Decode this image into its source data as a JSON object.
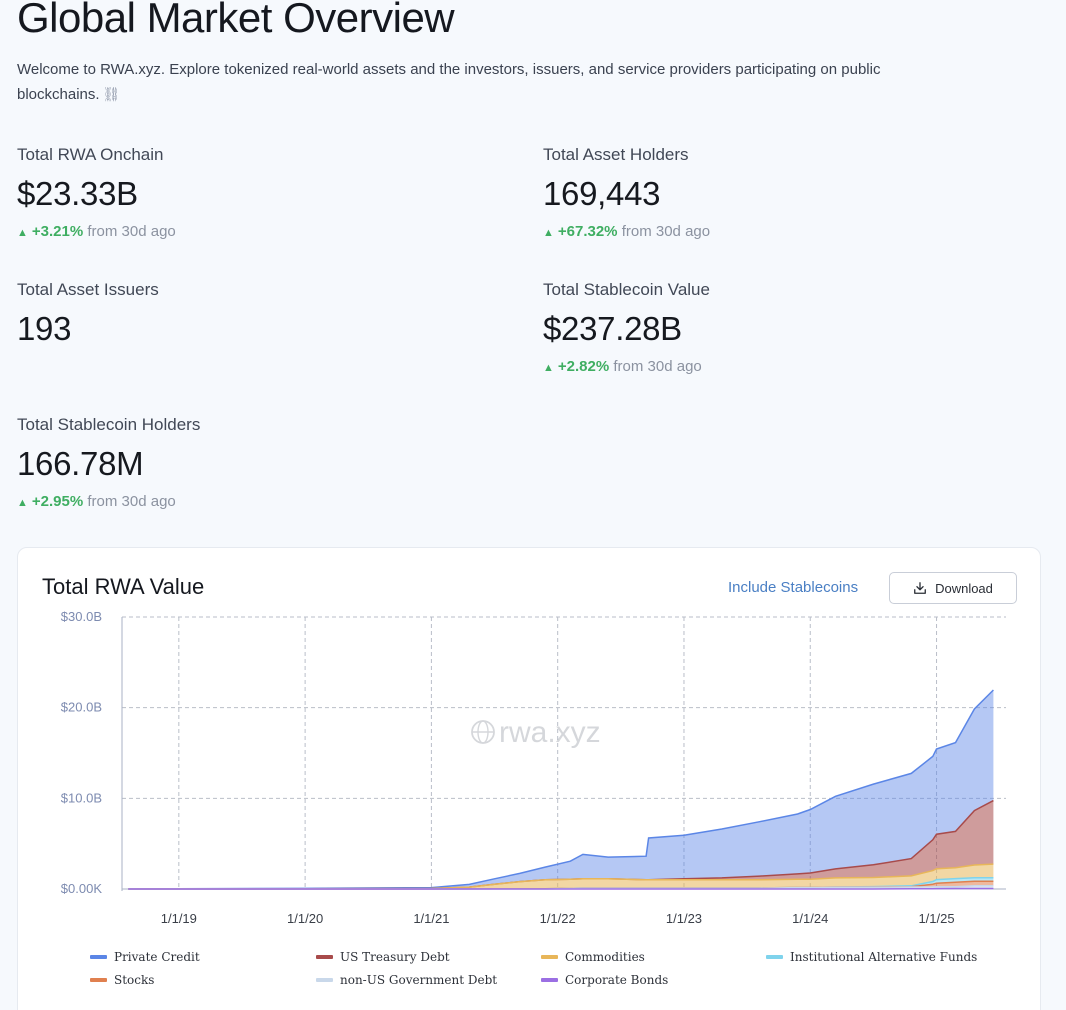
{
  "header": {
    "title": "Global Market Overview",
    "intro": "Welcome to RWA.xyz. Explore tokenized real-world assets and the investors, issuers, and service providers participating on public blockchains.",
    "intro_icon": "link-icon",
    "intro_icon_glyph": "⛓"
  },
  "stats": {
    "rwa_onchain": {
      "label": "Total RWA Onchain",
      "value": "$23.33B",
      "change": "+3.21%",
      "suffix": "from 30d ago"
    },
    "asset_holders": {
      "label": "Total Asset Holders",
      "value": "169,443",
      "change": "+67.32%",
      "suffix": "from 30d ago"
    },
    "asset_issuers": {
      "label": "Total Asset Issuers",
      "value": "193"
    },
    "stablecoin_value": {
      "label": "Total Stablecoin Value",
      "value": "$237.28B",
      "change": "+2.82%",
      "suffix": "from 30d ago"
    },
    "stablecoin_holders": {
      "label": "Total Stablecoin Holders",
      "value": "166.78M",
      "change": "+2.95%",
      "suffix": "from 30d ago"
    }
  },
  "trend_glyph": "▲",
  "card": {
    "title": "Total RWA Value",
    "include_stablecoins_label": "Include Stablecoins",
    "download_label": "Download",
    "download_icon": "download-icon"
  },
  "chart_data": {
    "type": "area",
    "stacked": true,
    "title": "Total RWA Value",
    "watermark": "rwa.xyz",
    "xlabel": "",
    "ylabel": "",
    "x_ticks": [
      "1/1/19",
      "1/1/20",
      "1/1/21",
      "1/1/22",
      "1/1/23",
      "1/1/24",
      "1/1/25"
    ],
    "y_ticks": [
      "$0.00K",
      "$10.0B",
      "$20.0B",
      "$30.0B"
    ],
    "ylim": [
      0,
      30
    ],
    "units": "$B",
    "grid": true,
    "x": [
      2018.6,
      2019.0,
      2020.0,
      2021.0,
      2021.3,
      2021.5,
      2021.7,
      2021.9,
      2022.1,
      2022.2,
      2022.4,
      2022.7,
      2022.72,
      2023.0,
      2023.3,
      2023.6,
      2023.9,
      2024.0,
      2024.2,
      2024.5,
      2024.8,
      2024.97,
      2025.0,
      2025.15,
      2025.3,
      2025.45
    ],
    "series": [
      {
        "name": "Private Credit",
        "color": "#5b86e6",
        "values": [
          0,
          0.02,
          0.05,
          0.1,
          0.3,
          0.6,
          0.9,
          1.4,
          2.0,
          2.7,
          2.4,
          2.6,
          4.6,
          4.8,
          5.4,
          6.0,
          6.6,
          7.0,
          8.0,
          8.9,
          9.4,
          9.2,
          9.4,
          9.8,
          11.2,
          12.2
        ]
      },
      {
        "name": "US Treasury Debt",
        "color": "#a84b4b",
        "values": [
          0,
          0,
          0,
          0,
          0,
          0,
          0,
          0,
          0,
          0,
          0,
          0,
          0,
          0.1,
          0.2,
          0.4,
          0.6,
          0.7,
          1.0,
          1.4,
          1.9,
          3.4,
          3.8,
          4.0,
          6.0,
          7.0
        ]
      },
      {
        "name": "Commodities",
        "color": "#e8b659",
        "values": [
          0,
          0.01,
          0.02,
          0.05,
          0.2,
          0.5,
          0.8,
          1.0,
          1.0,
          1.0,
          1.0,
          0.9,
          0.9,
          0.9,
          0.9,
          0.9,
          0.9,
          0.9,
          1.0,
          1.0,
          1.1,
          1.2,
          1.2,
          1.2,
          1.4,
          1.5
        ]
      },
      {
        "name": "Institutional Alternative Funds",
        "color": "#7fd3ec",
        "values": [
          0,
          0,
          0,
          0,
          0,
          0,
          0,
          0,
          0,
          0,
          0,
          0,
          0,
          0,
          0,
          0,
          0,
          0,
          0,
          0.05,
          0.1,
          0.3,
          0.4,
          0.4,
          0.4,
          0.4
        ]
      },
      {
        "name": "Stocks",
        "color": "#e0804f",
        "values": [
          0,
          0,
          0,
          0,
          0.01,
          0.02,
          0.02,
          0.02,
          0.02,
          0.02,
          0.02,
          0.02,
          0.02,
          0.02,
          0.02,
          0.02,
          0.02,
          0.02,
          0.02,
          0.02,
          0.03,
          0.3,
          0.4,
          0.5,
          0.5,
          0.5
        ]
      },
      {
        "name": "non-US Government Debt",
        "color": "#c9d8ea",
        "values": [
          0,
          0,
          0,
          0,
          0,
          0,
          0,
          0,
          0.05,
          0.1,
          0.1,
          0.1,
          0.1,
          0.1,
          0.1,
          0.1,
          0.15,
          0.15,
          0.2,
          0.2,
          0.2,
          0.2,
          0.2,
          0.2,
          0.3,
          0.3
        ]
      },
      {
        "name": "Corporate Bonds",
        "color": "#9b6fe3",
        "values": [
          0,
          0,
          0,
          0,
          0,
          0,
          0,
          0,
          0,
          0,
          0,
          0,
          0,
          0,
          0,
          0,
          0,
          0,
          0,
          0,
          0.02,
          0.03,
          0.04,
          0.05,
          0.05,
          0.05
        ]
      }
    ],
    "legend_position": "bottom"
  }
}
